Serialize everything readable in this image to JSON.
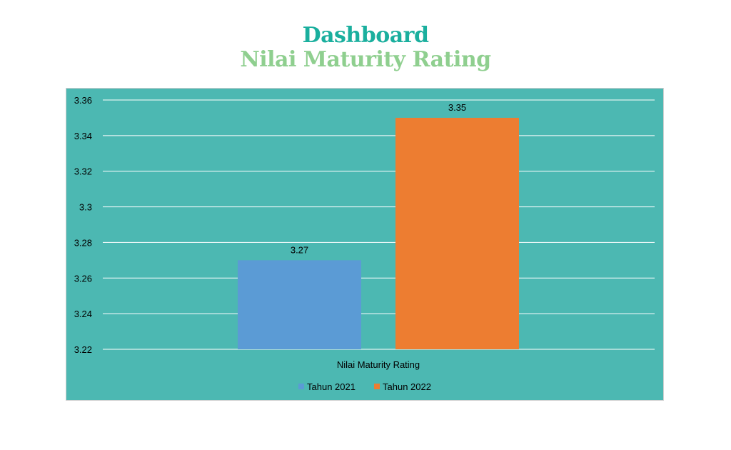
{
  "header": {
    "title": "Dashboard",
    "subtitle": "Nilai Maturity Rating"
  },
  "chart_data": {
    "type": "bar",
    "categories": [
      "Nilai Maturity Rating"
    ],
    "series": [
      {
        "name": "Tahun 2021",
        "values": [
          3.27
        ],
        "color": "#5b9bd5"
      },
      {
        "name": "Tahun 2022",
        "values": [
          3.35
        ],
        "color": "#ed7d31"
      }
    ],
    "data_labels": [
      "3.27",
      "3.35"
    ],
    "y_ticks": [
      "3.22",
      "3.24",
      "3.26",
      "3.28",
      "3.3",
      "3.32",
      "3.34",
      "3.36"
    ],
    "ylim": [
      3.22,
      3.36
    ],
    "grid": true,
    "legend_position": "bottom",
    "title": "",
    "xlabel": "",
    "ylabel": "",
    "background_color": "#4cb8b2",
    "gridline_color": "#ffffff"
  }
}
